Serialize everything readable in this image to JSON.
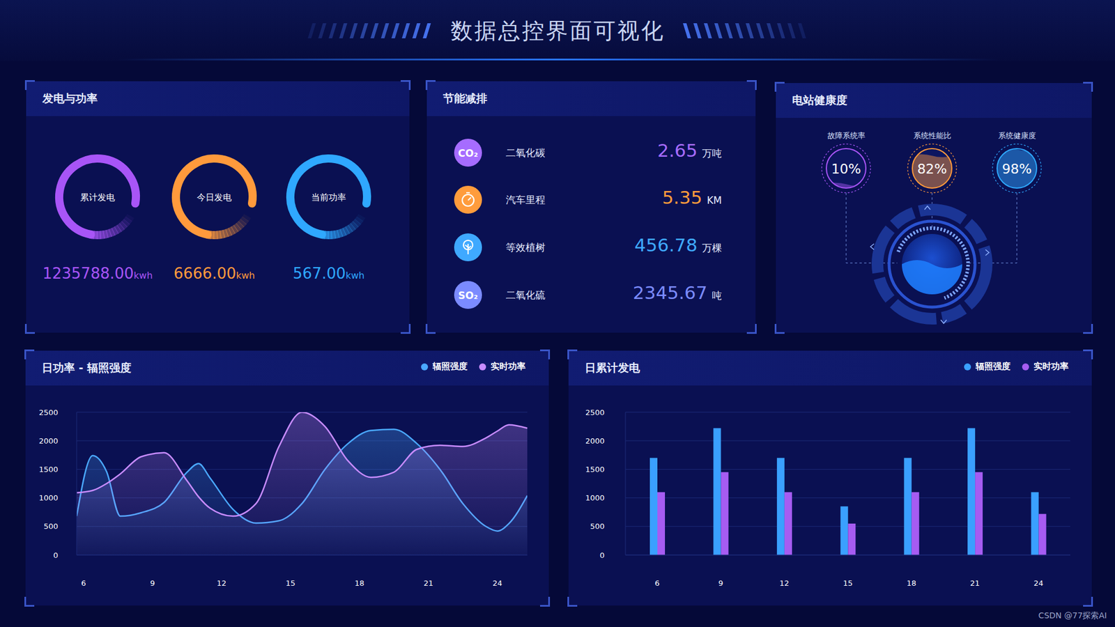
{
  "title": "数据总控界面可视化",
  "watermark": "CSDN @77探索AI",
  "generation": {
    "title": "发电与功率",
    "items": [
      {
        "label": "累计发电",
        "value": "1235788.00",
        "unit": "kwh",
        "color": "#a855f7"
      },
      {
        "label": "今日发电",
        "value": "6666.00",
        "unit": "kwh",
        "color": "#ff9a3c"
      },
      {
        "label": "当前功率",
        "value": "567.00",
        "unit": "kwh",
        "color": "#2fa8ff"
      }
    ]
  },
  "emission": {
    "title": "节能减排",
    "items": [
      {
        "icon": "CO₂",
        "label": "二氧化碳",
        "value": "2.65",
        "unit": "万吨",
        "color": "#a66cff"
      },
      {
        "label": "汽车里程",
        "value": "5.35",
        "unit": "KM",
        "color": "#ff9c3c"
      },
      {
        "label": "等效植树",
        "value": "456.78",
        "unit": "万棵",
        "color": "#3fa9ff"
      },
      {
        "icon": "SO₂",
        "label": "二氧化硫",
        "value": "2345.67",
        "unit": "吨",
        "color": "#7b8bff"
      }
    ]
  },
  "health": {
    "title": "电站健康度",
    "items": [
      {
        "label": "故障系统率",
        "value": 10,
        "value_label": "10%",
        "color": "#a855f7"
      },
      {
        "label": "系统性能比",
        "value": 82,
        "value_label": "82%",
        "color": "#ff9a3c"
      },
      {
        "label": "系统健康度",
        "value": 98,
        "value_label": "98%",
        "color": "#2fa8ff"
      }
    ]
  },
  "chart_data": [
    {
      "type": "area",
      "title": "日功率 - 辐照强度",
      "x": [
        5.7,
        6.4,
        7,
        7.6,
        8.5,
        9.5,
        10.5,
        11,
        11.5,
        12.5,
        13.5,
        14.5,
        15.5,
        16.5,
        17.5,
        18.5,
        19.5,
        20.5,
        21.5,
        22.5,
        23.5,
        24,
        24.5,
        25.3
      ],
      "series": [
        {
          "name": "辐照强度",
          "color": "#4aa8ff",
          "values": [
            680,
            1740,
            1460,
            680,
            740,
            920,
            1450,
            1600,
            1350,
            800,
            560,
            600,
            900,
            1500,
            1950,
            2180,
            2200,
            1950,
            1500,
            900,
            500,
            420,
            550,
            1040
          ]
        },
        {
          "name": "实时功率",
          "color": "#c88cff",
          "values": [
            1090,
            1130,
            1250,
            1420,
            1720,
            1790,
            1300,
            1020,
            820,
            680,
            900,
            1900,
            2500,
            2250,
            1650,
            1360,
            1450,
            1850,
            1920,
            1900,
            2050,
            2170,
            2280,
            2220
          ]
        }
      ],
      "xlim": [
        5.7,
        25.3
      ],
      "xticks": [
        6,
        9,
        12,
        15,
        18,
        21,
        24
      ],
      "ylim": [
        0,
        2500
      ],
      "yticks": [
        0,
        500,
        1000,
        1500,
        2000,
        2500
      ],
      "grid": true,
      "legend": "top-right"
    },
    {
      "type": "bar",
      "title": "日累计发电",
      "categories": [
        "6",
        "9",
        "12",
        "15",
        "18",
        "21",
        "24"
      ],
      "series": [
        {
          "name": "辐照强度",
          "color": "#3aa0ff",
          "values": [
            1700,
            2220,
            1700,
            850,
            1700,
            2220,
            1100
          ]
        },
        {
          "name": "实时功率",
          "color": "#a65cf2",
          "values": [
            1100,
            1450,
            1100,
            550,
            1100,
            1450,
            720
          ]
        }
      ],
      "ylim": [
        0,
        2500
      ],
      "yticks": [
        0,
        500,
        1000,
        1500,
        2000,
        2500
      ],
      "grid": true,
      "legend": "top-right"
    }
  ]
}
